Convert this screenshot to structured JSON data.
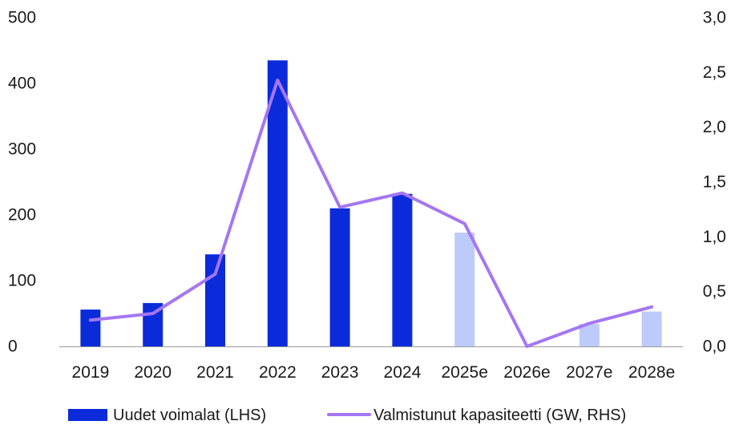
{
  "chart_data": {
    "type": "bar",
    "title": "",
    "categories": [
      "2019",
      "2020",
      "2021",
      "2022",
      "2023",
      "2024",
      "2025e",
      "2026e",
      "2027e",
      "2028e"
    ],
    "series": [
      {
        "name": "Uudet voimalat (LHS)",
        "type": "bar",
        "axis": "left",
        "values": [
          56,
          66,
          140,
          435,
          210,
          232,
          173,
          0,
          34,
          53
        ],
        "estimate_flags": [
          false,
          false,
          false,
          false,
          false,
          false,
          true,
          true,
          true,
          true
        ]
      },
      {
        "name": "Valmistunut kapasiteetti (GW, RHS)",
        "type": "line",
        "axis": "right",
        "values": [
          0.24,
          0.3,
          0.66,
          2.43,
          1.27,
          1.4,
          1.12,
          0.0,
          0.21,
          0.36
        ]
      }
    ],
    "y_left": {
      "ylim": [
        0,
        500
      ],
      "ticks": [
        "0",
        "100",
        "200",
        "300",
        "400",
        "500"
      ]
    },
    "y_right": {
      "ylim": [
        0,
        3
      ],
      "ticks": [
        "0,0",
        "0,5",
        "1,0",
        "1,5",
        "2,0",
        "2,5",
        "3,0"
      ]
    },
    "legend": {
      "placement": "bottom",
      "items": [
        "Uudet voimalat (LHS)",
        "Valmistunut kapasiteetti (GW, RHS)"
      ]
    },
    "grid": false,
    "colors": {
      "bar_actual": "#0b2bdb",
      "bar_estimate": "#bccbfa",
      "line": "#a477f2",
      "axis": "#999999",
      "text": "#1a1a1a"
    }
  }
}
